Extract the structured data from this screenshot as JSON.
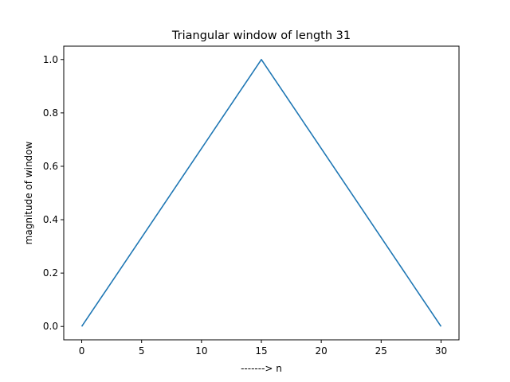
{
  "chart_data": {
    "type": "line",
    "title": "Triangular window of length 31",
    "xlabel": "-------> n",
    "ylabel": "magnitude of window",
    "xlim": [
      -1.5,
      31.5
    ],
    "ylim": [
      -0.05,
      1.05
    ],
    "xticks": [
      0,
      5,
      10,
      15,
      20,
      25,
      30
    ],
    "xtick_labels": [
      "0",
      "5",
      "10",
      "15",
      "20",
      "25",
      "30"
    ],
    "yticks": [
      0.0,
      0.2,
      0.4,
      0.6,
      0.8,
      1.0
    ],
    "ytick_labels": [
      "0.0",
      "0.2",
      "0.4",
      "0.6",
      "0.8",
      "1.0"
    ],
    "grid": false,
    "series": [
      {
        "color": "#1f77b4",
        "x": [
          0,
          1,
          2,
          3,
          4,
          5,
          6,
          7,
          8,
          9,
          10,
          11,
          12,
          13,
          14,
          15,
          16,
          17,
          18,
          19,
          20,
          21,
          22,
          23,
          24,
          25,
          26,
          27,
          28,
          29,
          30
        ],
        "y": [
          0.0,
          0.0667,
          0.1333,
          0.2,
          0.2667,
          0.3333,
          0.4,
          0.4667,
          0.5333,
          0.6,
          0.6667,
          0.7333,
          0.8,
          0.8667,
          0.9333,
          1.0,
          0.9333,
          0.8667,
          0.8,
          0.7333,
          0.6667,
          0.6,
          0.5333,
          0.4667,
          0.4,
          0.3333,
          0.2667,
          0.2,
          0.1333,
          0.0667,
          0.0
        ]
      }
    ]
  }
}
